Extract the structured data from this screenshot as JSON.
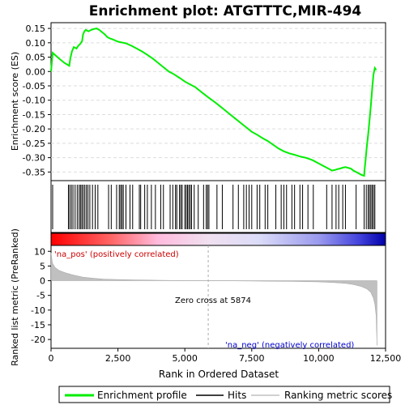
{
  "chart_data": {
    "type": "line",
    "title": "Enrichment plot: ATGTTTC,MIR-494",
    "xlabel": "Rank in Ordered Dataset",
    "xlim": [
      0,
      12500
    ],
    "x_ticks": [
      0,
      2500,
      5000,
      7500,
      10000,
      12500
    ],
    "x_tick_labels": [
      "0",
      "2,500",
      "5,000",
      "7,500",
      "10,000",
      "12,500"
    ],
    "es_panel": {
      "ylabel": "Enrichment score (ES)",
      "ylim": [
        -0.38,
        0.17
      ],
      "y_ticks": [
        0.15,
        0.1,
        0.05,
        0.0,
        -0.05,
        -0.1,
        -0.15,
        -0.2,
        -0.25,
        -0.3,
        -0.35
      ],
      "y_tick_labels": [
        "0.15",
        "0.10",
        "0.05",
        "0.00",
        "-0.05",
        "-0.10",
        "-0.15",
        "-0.20",
        "-0.25",
        "-0.30",
        "-0.35"
      ],
      "grid": true,
      "series": [
        {
          "name": "Enrichment profile",
          "color": "#00ee00",
          "x": [
            0,
            60,
            120,
            300,
            500,
            680,
            720,
            780,
            850,
            950,
            1020,
            1080,
            1120,
            1160,
            1200,
            1250,
            1300,
            1350,
            1400,
            1500,
            1600,
            1700,
            1800,
            2000,
            2100,
            2200,
            2300,
            2400,
            2500,
            2600,
            2700,
            2800,
            3000,
            3200,
            3400,
            3600,
            3800,
            4000,
            4200,
            4400,
            4600,
            4800,
            5000,
            5200,
            5400,
            5600,
            5874,
            6100,
            6300,
            6500,
            6700,
            6900,
            7100,
            7300,
            7500,
            7700,
            7900,
            8100,
            8300,
            8500,
            8700,
            8900,
            9100,
            9300,
            9500,
            9700,
            9800,
            9900,
            10000,
            10200,
            10400,
            10500,
            10600,
            10700,
            10800,
            10900,
            11000,
            11200,
            11300,
            11400,
            11500,
            11600,
            11700,
            11720,
            11760,
            11800,
            11850,
            11900,
            11950,
            12000,
            12050,
            12100,
            12150
          ],
          "y": [
            0.0,
            0.065,
            0.06,
            0.045,
            0.03,
            0.02,
            0.045,
            0.07,
            0.085,
            0.08,
            0.09,
            0.095,
            0.1,
            0.105,
            0.13,
            0.14,
            0.145,
            0.142,
            0.14,
            0.145,
            0.148,
            0.15,
            0.145,
            0.13,
            0.12,
            0.115,
            0.112,
            0.108,
            0.104,
            0.102,
            0.1,
            0.098,
            0.09,
            0.08,
            0.07,
            0.058,
            0.045,
            0.03,
            0.015,
            0.0,
            -0.01,
            -0.022,
            -0.035,
            -0.045,
            -0.055,
            -0.07,
            -0.09,
            -0.105,
            -0.12,
            -0.135,
            -0.15,
            -0.165,
            -0.18,
            -0.195,
            -0.21,
            -0.22,
            -0.232,
            -0.242,
            -0.255,
            -0.268,
            -0.278,
            -0.285,
            -0.29,
            -0.296,
            -0.3,
            -0.306,
            -0.31,
            -0.315,
            -0.32,
            -0.33,
            -0.34,
            -0.345,
            -0.343,
            -0.34,
            -0.338,
            -0.335,
            -0.333,
            -0.338,
            -0.345,
            -0.35,
            -0.355,
            -0.36,
            -0.363,
            -0.34,
            -0.3,
            -0.26,
            -0.22,
            -0.17,
            -0.12,
            -0.06,
            -0.01,
            0.012,
            0.005
          ]
        }
      ]
    },
    "hits": {
      "color": "#000000",
      "x": [
        60,
        650,
        700,
        760,
        820,
        900,
        980,
        1050,
        1100,
        1150,
        1200,
        1260,
        1320,
        1380,
        1450,
        1550,
        1650,
        1750,
        2150,
        2250,
        2450,
        2550,
        2600,
        2650,
        2700,
        2800,
        2950,
        3050,
        3300,
        3350,
        3500,
        3600,
        3750,
        3900,
        4100,
        4200,
        4450,
        4550,
        4650,
        4700,
        4800,
        4850,
        4900,
        5000,
        5050,
        5100,
        5150,
        5200,
        5250,
        5350,
        5500,
        5700,
        5800,
        5850,
        5900,
        6200,
        6400,
        6800,
        7000,
        7200,
        7300,
        7400,
        7500,
        7700,
        7800,
        8000,
        8100,
        8400,
        8600,
        8700,
        8800,
        9000,
        9100,
        9300,
        9400,
        9600,
        9800,
        10300,
        10500,
        10650,
        10750,
        10900,
        11000,
        11400,
        11700,
        11780,
        11850,
        11900,
        11950,
        12000,
        12050,
        12100
      ]
    },
    "rank_metric_panel": {
      "ylabel": "Ranked list metric (PreRanked)",
      "ylim": [
        -23,
        12
      ],
      "y_ticks": [
        10,
        5,
        0,
        -5,
        -10,
        -15,
        -20
      ],
      "y_tick_labels": [
        "10",
        "5",
        "0",
        "-5",
        "-10",
        "-15",
        "-20"
      ],
      "series_name": "Ranking metric scores",
      "color": "#c0c0c0",
      "x": [
        0,
        50,
        150,
        300,
        500,
        800,
        1200,
        1600,
        2000,
        3000,
        4000,
        5000,
        5874,
        7000,
        8000,
        9000,
        10000,
        10500,
        11000,
        11300,
        11600,
        11800,
        11950,
        12050,
        12100,
        12150,
        12180
      ],
      "y": [
        9.5,
        6.0,
        4.5,
        3.5,
        2.8,
        2.0,
        1.2,
        0.8,
        0.5,
        0.3,
        0.15,
        0.05,
        0.0,
        -0.08,
        -0.15,
        -0.25,
        -0.4,
        -0.6,
        -0.9,
        -1.3,
        -2.0,
        -2.8,
        -4.0,
        -6.0,
        -8.0,
        -12.0,
        -22.0
      ],
      "zero_cross_label": "Zero cross at 5874",
      "zero_cross_x": 5874,
      "pos_label": "'na_pos' (positively correlated)",
      "neg_label": "'na_neg' (negatively correlated)",
      "pos_color": "#cc0000",
      "neg_color": "#0000cc"
    },
    "legend": {
      "placement": "bottom",
      "entries": [
        {
          "label": "Enrichment profile",
          "kind": "line",
          "color": "#00ee00"
        },
        {
          "label": "Hits",
          "kind": "line",
          "color": "#000000"
        },
        {
          "label": "Ranking metric scores",
          "kind": "line",
          "color": "#c0c0c0"
        }
      ]
    }
  }
}
